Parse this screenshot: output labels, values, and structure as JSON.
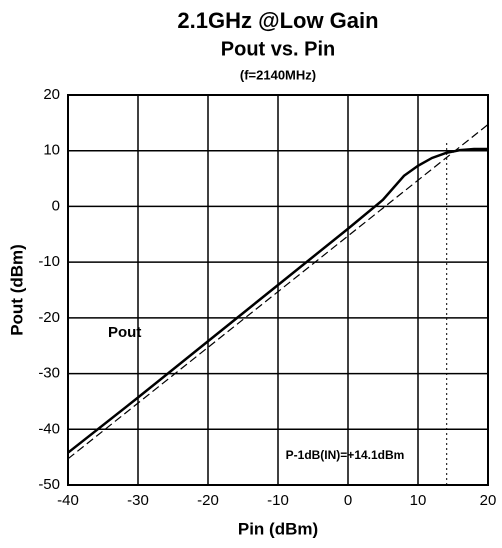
{
  "chart_data": {
    "type": "line",
    "title": "2.1GHz @Low Gain",
    "subtitle": "Pout vs. Pin",
    "note": "(f=2140MHz)",
    "x_label": "Pin (dBm)",
    "y_label": "Pout (dBm)",
    "series": [
      {
        "name": "Pout",
        "color": "#000000",
        "style": "solid",
        "x": [
          -40,
          -30,
          -20,
          -10,
          0,
          5,
          8,
          10,
          12,
          14,
          16,
          18,
          20
        ],
        "values": [
          -44.2,
          -34.3,
          -24.2,
          -14.1,
          -4,
          1.2,
          5.5,
          7.3,
          8.7,
          9.6,
          10.1,
          10.3,
          10.3
        ]
      },
      {
        "color": "#000000",
        "style": "dashed",
        "x": [
          -40,
          20
        ],
        "values": [
          -45.3,
          14.7
        ]
      }
    ],
    "annotation": {
      "text": "P-1dB(IN)=+14.1dBm",
      "x": 14.1
    },
    "xlim": [
      -40,
      20
    ],
    "xticks": [
      -40,
      -30,
      -20,
      -10,
      0,
      10,
      20
    ],
    "ylim": [
      -50,
      20
    ],
    "yticks": [
      -50,
      -40,
      -30,
      -20,
      -10,
      0,
      10,
      20
    ],
    "grid": true
  }
}
